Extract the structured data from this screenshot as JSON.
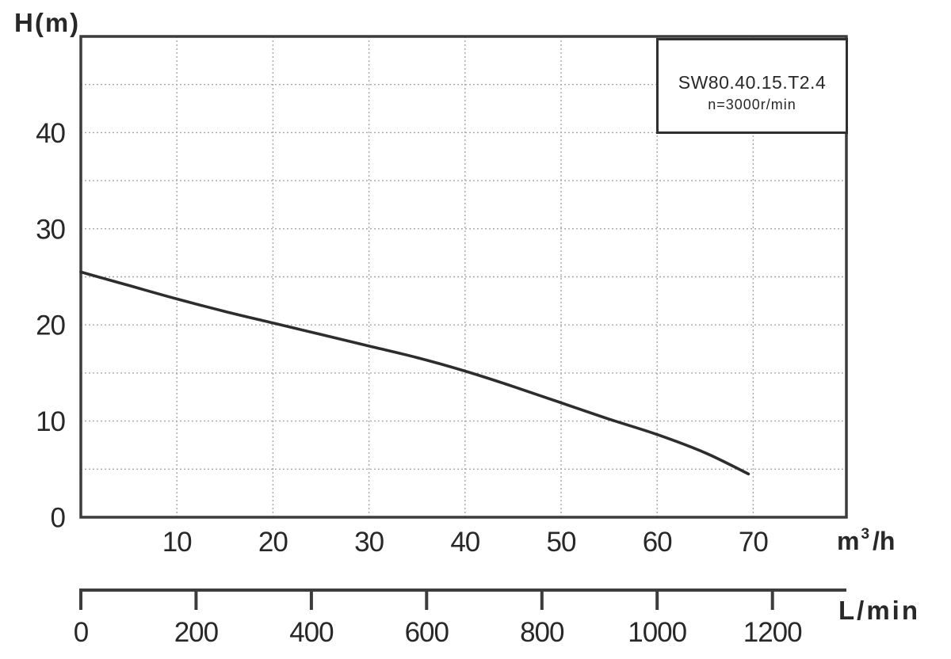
{
  "page": {
    "background": "#ffffff"
  },
  "legend": {
    "model": "SW80.40.15.T2.4",
    "speed": "n=3000r/min"
  },
  "units": {
    "primary": {
      "pre": "m",
      "sup": "3",
      "post": "/h"
    },
    "secondary": "L/min"
  },
  "colors": {
    "background": "#ffffff",
    "axis": "#3c3c3c",
    "grid": "#a8a8a8",
    "curve": "#2d2d2d",
    "text": "#282828",
    "legend_border": "#2f2f2f"
  },
  "chart_data": {
    "type": "line",
    "title": "",
    "x_axis": {
      "unit": "m³/h",
      "min": 0,
      "max": 79.7,
      "grid_step": 10,
      "ticks": [
        10,
        20,
        30,
        40,
        50,
        60,
        70
      ],
      "gridlines": true
    },
    "y_axis": {
      "label": "H(m)",
      "min": 0,
      "max": 50,
      "grid_step": 5,
      "ticks": [
        0,
        10,
        20,
        30,
        40
      ],
      "gridlines": true
    },
    "x_axis_secondary": {
      "unit": "L/min",
      "ticks": [
        0,
        200,
        400,
        600,
        800,
        1000,
        1200
      ],
      "lmin_per_m3h": 16.667
    },
    "series": [
      {
        "name": "SW80.40.15.T2.4 n=3000r/min",
        "points": [
          [
            0,
            25.5
          ],
          [
            5,
            24.1
          ],
          [
            10,
            22.7
          ],
          [
            15,
            21.4
          ],
          [
            20,
            20.2
          ],
          [
            25,
            19.0
          ],
          [
            30,
            17.8
          ],
          [
            35,
            16.6
          ],
          [
            40,
            15.2
          ],
          [
            45,
            13.6
          ],
          [
            50,
            11.9
          ],
          [
            55,
            10.2
          ],
          [
            60,
            8.6
          ],
          [
            65,
            6.7
          ],
          [
            69.5,
            4.5
          ]
        ]
      }
    ]
  }
}
